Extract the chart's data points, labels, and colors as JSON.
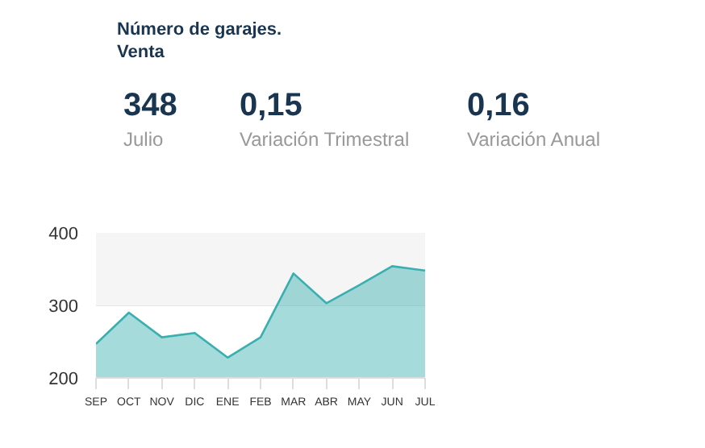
{
  "chart_data": [
    {
      "type": "other",
      "title": "Número de garajes.",
      "subtitle": "Venta",
      "annotations": [
        "348",
        "Julio",
        "0,15",
        "Variación Trimestral",
        "0,16",
        "Variación Anual"
      ]
    },
    {
      "type": "area",
      "categories": [
        "SEP",
        "OCT",
        "NOV",
        "DIC",
        "ENE",
        "FEB",
        "MAR",
        "ABR",
        "MAY",
        "JUN",
        "JUL"
      ],
      "series": [
        {
          "color": "#3aafb0",
          "values": [
            247,
            290,
            256,
            262,
            228,
            256,
            344,
            303,
            328,
            354,
            348
          ]
        }
      ],
      "ylim": [
        200,
        400
      ],
      "yticks": [
        200,
        300,
        400
      ],
      "grid": "y",
      "bands": [
        {
          "axis": "y",
          "from": 300,
          "to": 400,
          "color": "#f5f5f5"
        }
      ]
    }
  ]
}
